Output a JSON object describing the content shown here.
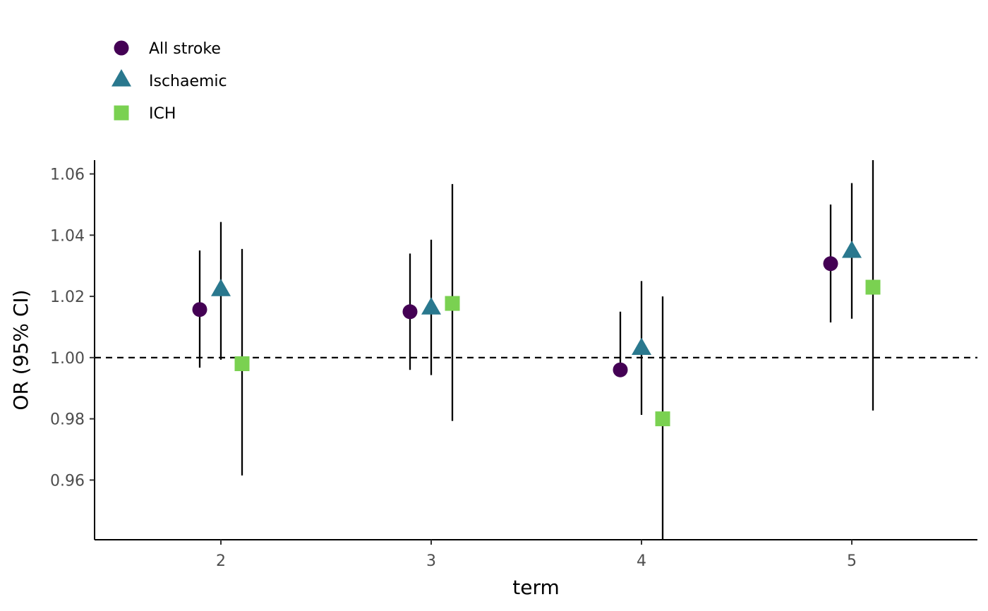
{
  "chart_data": {
    "type": "scatter",
    "subtype": "point-range (forest plot)",
    "xlabel": "term",
    "ylabel": "OR (95% CI)",
    "categories": [
      "2",
      "3",
      "4",
      "5"
    ],
    "ylim": [
      0.9405,
      1.0645
    ],
    "yticks": [
      "0.96",
      "0.98",
      "1.00",
      "1.02",
      "1.04",
      "1.06"
    ],
    "reference_line": {
      "y": 1.0,
      "style": "dashed"
    },
    "grid": false,
    "legend": {
      "position": "top-left"
    },
    "series": [
      {
        "name": "All stroke",
        "shape": "circle",
        "color": "#440154",
        "points": [
          {
            "x": "2",
            "or": 1.0157,
            "lo": 0.9967,
            "hi": 1.035
          },
          {
            "x": "3",
            "or": 1.015,
            "lo": 0.996,
            "hi": 1.034
          },
          {
            "x": "4",
            "or": 0.996,
            "lo": 0.9975,
            "hi": 1.015
          },
          {
            "x": "5",
            "or": 1.0307,
            "lo": 1.0115,
            "hi": 1.05
          }
        ]
      },
      {
        "name": "Ischaemic",
        "shape": "triangle",
        "color": "#2A788E",
        "points": [
          {
            "x": "2",
            "or": 1.0225,
            "lo": 0.9993,
            "hi": 1.0443
          },
          {
            "x": "3",
            "or": 1.0165,
            "lo": 0.9943,
            "hi": 1.0385
          },
          {
            "x": "4",
            "or": 1.0033,
            "lo": 0.9813,
            "hi": 1.025
          },
          {
            "x": "5",
            "or": 1.035,
            "lo": 1.0127,
            "hi": 1.057
          }
        ]
      },
      {
        "name": "ICH",
        "shape": "square",
        "color": "#7AD151",
        "points": [
          {
            "x": "2",
            "or": 0.998,
            "lo": 0.9615,
            "hi": 1.0355
          },
          {
            "x": "3",
            "or": 1.0177,
            "lo": 0.9793,
            "hi": 1.0567
          },
          {
            "x": "4",
            "or": 0.98,
            "lo": 0.9405,
            "hi": 1.02
          },
          {
            "x": "5",
            "or": 1.023,
            "lo": 0.9827,
            "hi": 1.0645
          }
        ]
      }
    ]
  }
}
